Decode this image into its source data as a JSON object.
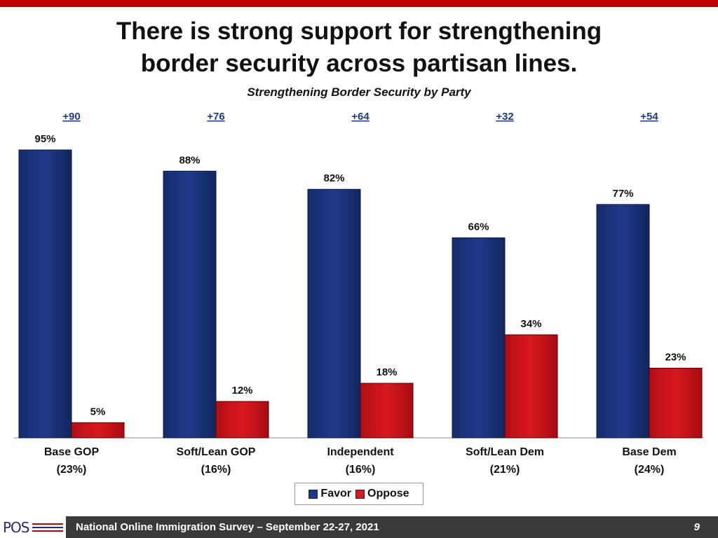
{
  "header": {
    "title_line1": "There is strong support for strengthening",
    "title_line2": "border security across partisan lines.",
    "subtitle": "Strengthening Border Security by Party"
  },
  "colors": {
    "favor": "#1f3a8a",
    "oppose": "#d9181f",
    "accent_bar": "#c00000",
    "net_text": "#1f3a8a"
  },
  "chart_data": {
    "type": "bar",
    "title": "Strengthening Border Security by Party",
    "categories": [
      "Base GOP",
      "Soft/Lean GOP",
      "Independent",
      "Soft/Lean Dem",
      "Base Dem"
    ],
    "category_shares": [
      "(23%)",
      "(16%)",
      "(16%)",
      "(21%)",
      "(24%)"
    ],
    "net": [
      "+90",
      "+76",
      "+64",
      "+32",
      "+54"
    ],
    "series": [
      {
        "name": "Favor",
        "values": [
          95,
          88,
          82,
          66,
          77
        ],
        "labels": [
          "95%",
          "88%",
          "82%",
          "66%",
          "77%"
        ]
      },
      {
        "name": "Oppose",
        "values": [
          5,
          12,
          18,
          34,
          23
        ],
        "labels": [
          "5%",
          "12%",
          "18%",
          "34%",
          "23%"
        ]
      }
    ],
    "ylim": [
      0,
      100
    ],
    "grid": false,
    "legend": "bottom-center"
  },
  "legend": {
    "favor_label": "Favor",
    "oppose_label": "Oppose"
  },
  "footer": {
    "logo_text": "POS",
    "survey_text": "National Online Immigration Survey – September 22-27, 2021",
    "page_number": "9"
  }
}
